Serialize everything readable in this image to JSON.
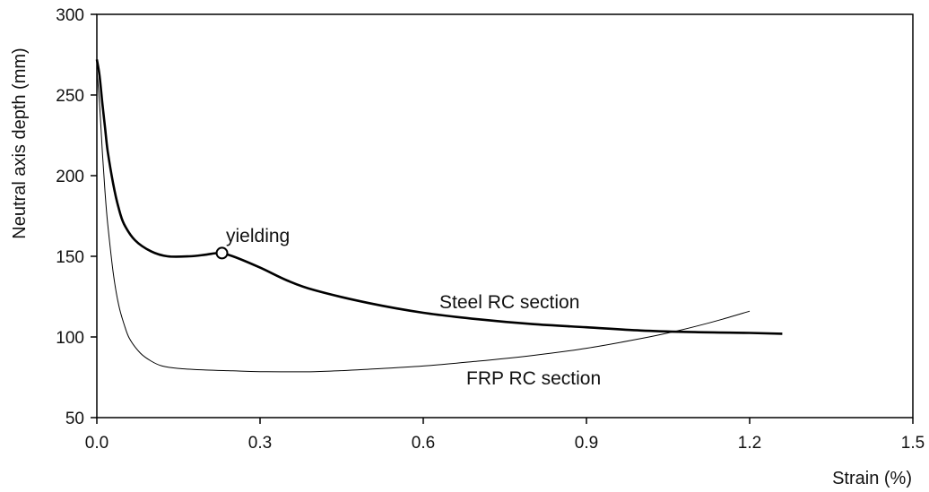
{
  "chart_data": {
    "type": "line",
    "xlabel": "Strain (%)",
    "ylabel": "Neutral axis depth (mm)",
    "xlim": [
      0,
      1.5
    ],
    "ylim": [
      50,
      300
    ],
    "xticks": [
      0.0,
      0.3,
      0.6,
      0.9,
      1.2,
      1.5
    ],
    "xtick_labels": [
      "0.0",
      "0.3",
      "0.6",
      "0.9",
      "1.2",
      "1.5"
    ],
    "yticks": [
      50,
      100,
      150,
      200,
      250,
      300
    ],
    "ytick_labels": [
      "50",
      "100",
      "150",
      "200",
      "250",
      "300"
    ],
    "grid": false,
    "series": [
      {
        "name": "Steel RC section",
        "color": "#000000",
        "x": [
          0.0,
          0.005,
          0.01,
          0.015,
          0.02,
          0.03,
          0.04,
          0.05,
          0.07,
          0.1,
          0.13,
          0.17,
          0.2,
          0.225,
          0.25,
          0.3,
          0.35,
          0.4,
          0.5,
          0.6,
          0.7,
          0.8,
          0.9,
          1.0,
          1.1,
          1.2,
          1.26
        ],
        "y": [
          272,
          262,
          245,
          230,
          215,
          195,
          180,
          170,
          160,
          153,
          150,
          150,
          151,
          152,
          150,
          143,
          135,
          129,
          121,
          115,
          111,
          108,
          106,
          104,
          103,
          102.5,
          102
        ]
      },
      {
        "name": "FRP RC section",
        "color": "#000000",
        "x": [
          0.0,
          0.005,
          0.01,
          0.015,
          0.02,
          0.03,
          0.04,
          0.05,
          0.06,
          0.08,
          0.1,
          0.12,
          0.15,
          0.2,
          0.25,
          0.3,
          0.4,
          0.5,
          0.6,
          0.7,
          0.8,
          0.9,
          1.0,
          1.05,
          1.1,
          1.15,
          1.2
        ],
        "y": [
          265,
          245,
          215,
          190,
          170,
          140,
          120,
          108,
          99,
          90,
          85,
          82,
          80.5,
          79.5,
          79,
          78.5,
          78.5,
          80,
          82,
          85,
          88.5,
          93,
          99,
          102.5,
          106.5,
          111,
          116
        ]
      }
    ],
    "annotations": [
      {
        "text": "yielding",
        "marker": "open-circle",
        "x": 0.23,
        "y": 152
      },
      {
        "text": "Steel RC section",
        "near_series": "Steel RC section"
      },
      {
        "text": "FRP RC section",
        "near_series": "FRP RC section"
      }
    ]
  }
}
